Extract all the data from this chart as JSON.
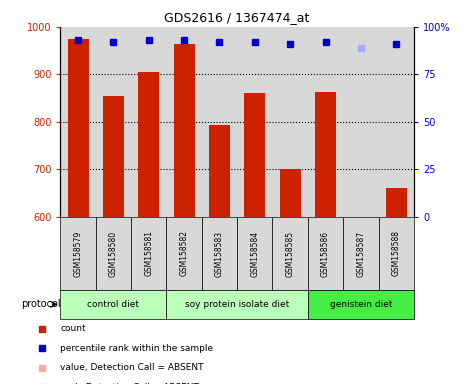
{
  "title": "GDS2616 / 1367474_at",
  "samples": [
    "GSM158579",
    "GSM158580",
    "GSM158581",
    "GSM158582",
    "GSM158583",
    "GSM158584",
    "GSM158585",
    "GSM158586",
    "GSM158587",
    "GSM158588"
  ],
  "bar_values": [
    975,
    855,
    905,
    963,
    793,
    860,
    700,
    862,
    600,
    660
  ],
  "bar_color": "#cc2200",
  "bar_bottom": 600,
  "ylim_left": [
    600,
    1000
  ],
  "yticks_left": [
    600,
    700,
    800,
    900,
    1000
  ],
  "ylim_right": [
    0,
    100
  ],
  "yticks_right": [
    0,
    25,
    50,
    75,
    100
  ],
  "yticklabels_right": [
    "0",
    "25",
    "50",
    "75",
    "100%"
  ],
  "percentile_ranks": [
    93,
    92,
    93,
    93,
    92,
    92,
    91,
    92,
    89,
    91
  ],
  "absent_value_idx": [
    8
  ],
  "absent_rank_idx": [
    8
  ],
  "dot_color_present": "#0000cc",
  "dot_color_absent_val": "#ffaaaa",
  "dot_color_absent_rank": "#aaaaff",
  "proto_data": [
    {
      "label": "control diet",
      "start": 0,
      "end": 3,
      "color": "#bbffbb"
    },
    {
      "label": "soy protein isolate diet",
      "start": 3,
      "end": 7,
      "color": "#bbffbb"
    },
    {
      "label": "genistein diet",
      "start": 7,
      "end": 10,
      "color": "#44ee44"
    }
  ],
  "bg_color": "#d8d8d8",
  "legend_items": [
    {
      "label": "count",
      "color": "#cc2200"
    },
    {
      "label": "percentile rank within the sample",
      "color": "#0000cc"
    },
    {
      "label": "value, Detection Call = ABSENT",
      "color": "#ffaaaa"
    },
    {
      "label": "rank, Detection Call = ABSENT",
      "color": "#aaaaff"
    }
  ]
}
